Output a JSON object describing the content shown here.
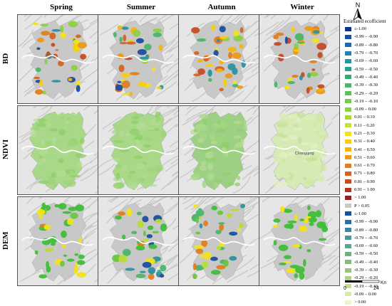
{
  "seasons": [
    "Spring",
    "Summer",
    "Autumn",
    "Winter"
  ],
  "rows": [
    {
      "label": "BD",
      "scheme": "bd"
    },
    {
      "label": "NDVI",
      "scheme": "ndvi"
    },
    {
      "label": "DEM",
      "scheme": "dem"
    }
  ],
  "city_label": "Chongqing",
  "north_label": "N",
  "legend": {
    "title": "Estimated ecofficient",
    "items": [
      {
        "label": "≤-1.00",
        "color": "#0b2f8a"
      },
      {
        "label": "-0.99 – -0.90",
        "color": "#1b4fa0"
      },
      {
        "label": "-0.89 – -0.80",
        "color": "#2066a8"
      },
      {
        "label": "-0.79 – -0.70",
        "color": "#2a7fa8"
      },
      {
        "label": "-0.69 – -0.60",
        "color": "#2c92a0"
      },
      {
        "label": "-0.59 – -0.50",
        "color": "#2aa090"
      },
      {
        "label": "-0.49 – -0.40",
        "color": "#35ab7c"
      },
      {
        "label": "-0.39 – -0.30",
        "color": "#49b66b"
      },
      {
        "label": "-0.29 – -0.20",
        "color": "#60c05c"
      },
      {
        "label": "-0.19 – -0.10",
        "color": "#78c94e"
      },
      {
        "label": "-0.09 – 0.00",
        "color": "#8ed044"
      },
      {
        "label": "0.01 – 0.10",
        "color": "#a5d83a"
      },
      {
        "label": "0.11 – 0.20",
        "color": "#c4e035"
      },
      {
        "label": "0.21 – 0.30",
        "color": "#f2e318"
      },
      {
        "label": "0.31 – 0.40",
        "color": "#f6cf10"
      },
      {
        "label": "0.41 – 0.50",
        "color": "#f3b512"
      },
      {
        "label": "0.51 – 0.60",
        "color": "#ec9a18"
      },
      {
        "label": "0.61 – 0.70",
        "color": "#e17e1f"
      },
      {
        "label": "0.71 – 0.80",
        "color": "#d56424"
      },
      {
        "label": "0.81 – 0.90",
        "color": "#c64c25"
      },
      {
        "label": "0.91 – 1.00",
        "color": "#b23424"
      },
      {
        "label": "> 1.00",
        "color": "#9a1c1c"
      },
      {
        "label": "P > 0.05",
        "color": "#c8c8c8"
      },
      {
        "label": "≤-1.00",
        "color": "#1b4fa0"
      },
      {
        "label": "-0.99 – -0.90",
        "color": "#2a6fa8"
      },
      {
        "label": "-0.89 – -0.80",
        "color": "#3a86a6"
      },
      {
        "label": "-0.79 – -0.70",
        "color": "#4a97a0"
      },
      {
        "label": "-0.69 – -0.60",
        "color": "#5aa494"
      },
      {
        "label": "-0.59 – -0.50",
        "color": "#6eae86"
      },
      {
        "label": "-0.49 – -0.40",
        "color": "#84b97a"
      },
      {
        "label": "-0.39 – -0.30",
        "color": "#98c47a"
      },
      {
        "label": "-0.29 – -0.20",
        "color": "#aed088"
      },
      {
        "label": "-0.19 – -0.10",
        "color": "#c4dc98"
      },
      {
        "label": "-0.09 – 0.00",
        "color": "#dae8ae"
      },
      {
        "label": "> 0.00",
        "color": "#f3f3c8"
      }
    ]
  },
  "scalebar": {
    "unit": "Km",
    "start": "0",
    "end": "24"
  },
  "colors": {
    "bd": [
      "#f2e318",
      "#f6cf10",
      "#f3b512",
      "#ec9a18",
      "#e17e1f",
      "#d56424",
      "#c64c25",
      "#2c92a0",
      "#49b66b",
      "#8ed044",
      "#1b4fa0"
    ],
    "ndvi": [
      "#8fcf6a",
      "#9ed47a",
      "#a8d886",
      "#b4dc94"
    ],
    "ndvi_winter": [
      "#c4e29a",
      "#cfe7a8",
      "#d9ecb8",
      "#e3f0c4"
    ],
    "dem": [
      "#3fbf3a",
      "#6cc63f",
      "#b6dd35",
      "#f2e318",
      "#e17e1f",
      "#2c92a0",
      "#1b4fa0",
      "#49b66b"
    ]
  }
}
